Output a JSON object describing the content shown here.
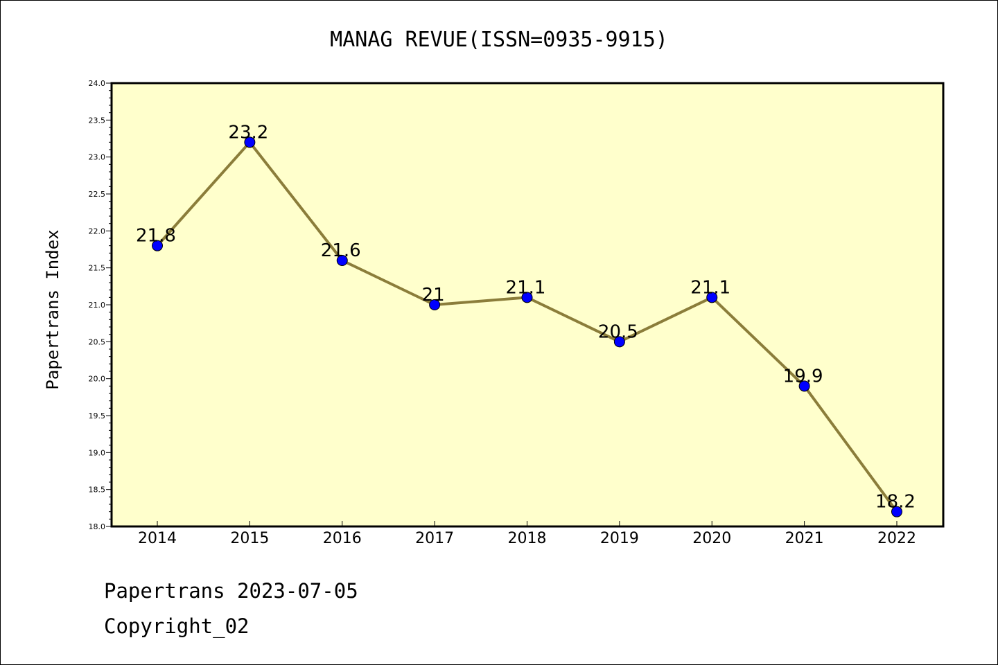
{
  "chart_data": {
    "type": "line",
    "title": "MANAG REVUE(ISSN=0935-9915)",
    "xlabel": "",
    "ylabel": "Papertrans Index",
    "categories": [
      "2014",
      "2015",
      "2016",
      "2017",
      "2018",
      "2019",
      "2020",
      "2021",
      "2022"
    ],
    "series": [
      {
        "values": [
          21.8,
          23.2,
          21.6,
          21.0,
          21.1,
          20.5,
          21.1,
          19.9,
          18.2
        ],
        "labels": [
          "21.8",
          "23.2",
          "21.6",
          "21",
          "21.1",
          "20.5",
          "21.1",
          "19.9",
          "18.2"
        ]
      }
    ],
    "ylim": [
      18.0,
      24.0
    ],
    "yticks": [
      "18.0",
      "18.5",
      "19.0",
      "19.5",
      "20.0",
      "20.5",
      "21.0",
      "21.5",
      "22.0",
      "22.5",
      "23.0",
      "23.5",
      "24.0"
    ],
    "grid": false,
    "colors": {
      "plot_background": "#ffffcc",
      "line": "#8b7d3a",
      "marker": "#0000ff"
    }
  },
  "footer": {
    "line1": "Papertrans 2023-07-05",
    "line2": "Copyright_02"
  }
}
